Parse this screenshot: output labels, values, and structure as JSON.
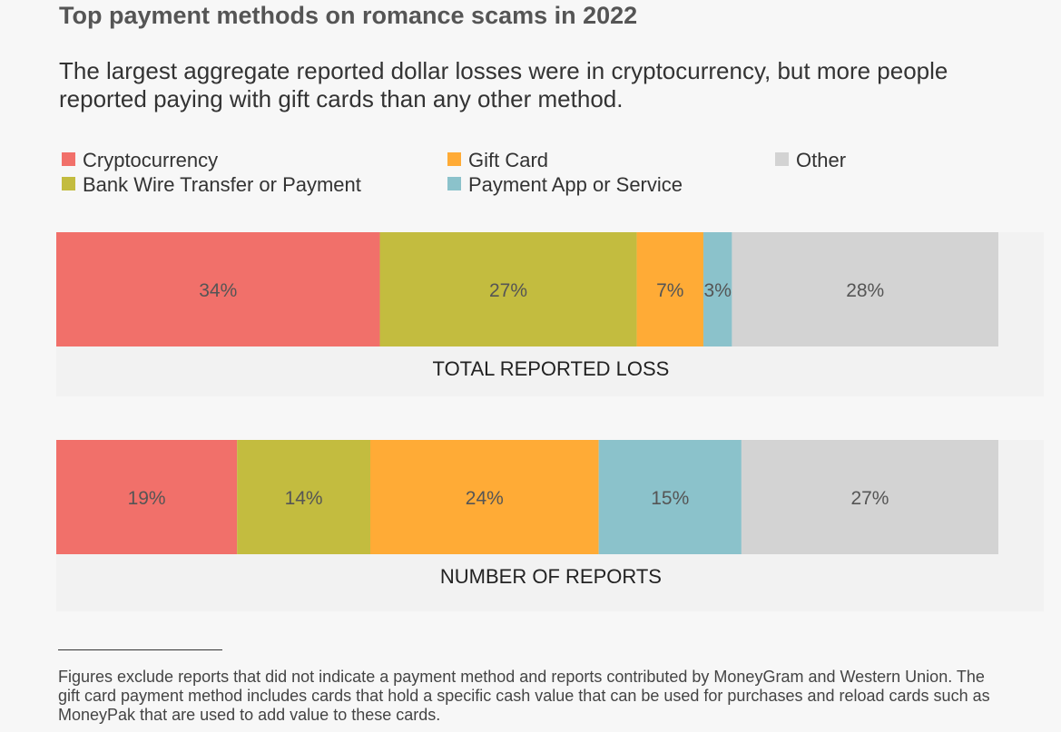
{
  "title": "Top payment methods on romance scams in 2022",
  "subtitle": "The largest aggregate reported dollar losses were in cryptocurrency, but more people reported paying with gift cards than any other method.",
  "legend": [
    {
      "label": "Cryptocurrency",
      "color": "#f1706a"
    },
    {
      "label": "Gift Card",
      "color": "#ffab36"
    },
    {
      "label": "Other",
      "color": "#d3d3d3"
    },
    {
      "label": "Bank Wire Transfer or Payment",
      "color": "#c3bc3f"
    },
    {
      "label": "Payment App or Service",
      "color": "#8bc2cb"
    }
  ],
  "chart_data": {
    "type": "bar",
    "orientation": "horizontal-stacked-100",
    "legend_position": "top",
    "grid": false,
    "series_order": [
      "Cryptocurrency",
      "Bank Wire Transfer or Payment",
      "Gift Card",
      "Payment App or Service",
      "Other"
    ],
    "bars": [
      {
        "caption": "TOTAL REPORTED LOSS",
        "segments": [
          {
            "series": "Cryptocurrency",
            "value": 34,
            "label": "34%"
          },
          {
            "series": "Bank Wire Transfer or Payment",
            "value": 27,
            "label": "27%"
          },
          {
            "series": "Gift Card",
            "value": 7,
            "label": "7%"
          },
          {
            "series": "Payment App or Service",
            "value": 3,
            "label": "3%"
          },
          {
            "series": "Other",
            "value": 28,
            "label": "28%"
          }
        ]
      },
      {
        "caption": "NUMBER OF REPORTS",
        "segments": [
          {
            "series": "Cryptocurrency",
            "value": 19,
            "label": "19%"
          },
          {
            "series": "Bank Wire Transfer or Payment",
            "value": 14,
            "label": "14%"
          },
          {
            "series": "Gift Card",
            "value": 24,
            "label": "24%"
          },
          {
            "series": "Payment App or Service",
            "value": 15,
            "label": "15%"
          },
          {
            "series": "Other",
            "value": 27,
            "label": "27%"
          }
        ]
      }
    ]
  },
  "footnote": "Figures exclude reports that did not indicate a payment method and reports contributed by MoneyGram and Western Union. The gift card payment method includes cards that hold a specific cash value that can be used for purchases and reload cards such as MoneyPak that are used to add value to these cards."
}
